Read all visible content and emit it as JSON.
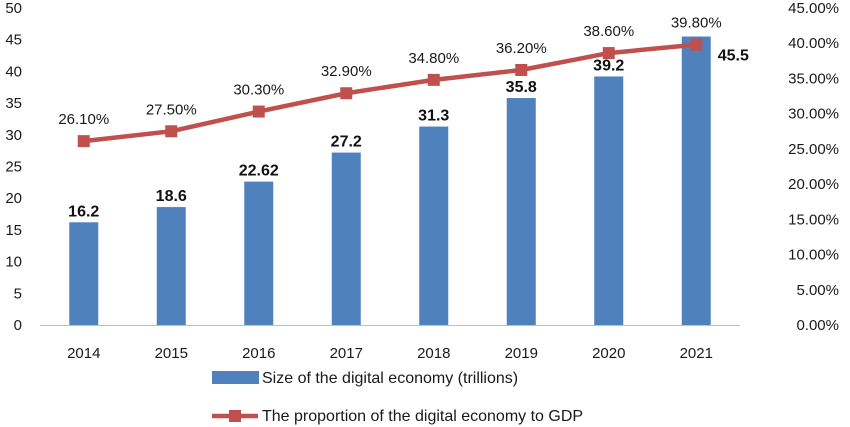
{
  "chart_data": {
    "type": "bar",
    "title": "",
    "xlabel": "",
    "ylabel": "",
    "categories": [
      "2014",
      "2015",
      "2016",
      "2017",
      "2018",
      "2019",
      "2020",
      "2021"
    ],
    "series": [
      {
        "name": "Size of the digital economy (trillions)",
        "type": "bar",
        "axis": "left",
        "color": "#4f81bd",
        "values": [
          16.2,
          18.6,
          22.62,
          27.2,
          31.3,
          35.8,
          39.2,
          45.5
        ],
        "labels": [
          "16.2",
          "18.6",
          "22.62",
          "27.2",
          "31.3",
          "35.8",
          "39.2",
          "45.5"
        ]
      },
      {
        "name": "The proportion of the digital economy to GDP",
        "type": "line",
        "axis": "right",
        "color": "#c0504d",
        "values": [
          26.1,
          27.5,
          30.3,
          32.9,
          34.8,
          36.2,
          38.6,
          39.8
        ],
        "labels": [
          "26.10%",
          "27.50%",
          "30.30%",
          "32.90%",
          "34.80%",
          "36.20%",
          "38.60%",
          "39.80%"
        ]
      }
    ],
    "ylim": [
      0,
      50
    ],
    "yticks": [
      "0",
      "5",
      "10",
      "15",
      "20",
      "25",
      "30",
      "35",
      "40",
      "45",
      "50"
    ],
    "y2lim": [
      0,
      45
    ],
    "y2ticks": [
      "0.00%",
      "5.00%",
      "10.00%",
      "15.00%",
      "20.00%",
      "25.00%",
      "30.00%",
      "35.00%",
      "40.00%",
      "45.00%"
    ],
    "grid": false,
    "legend": "bottom"
  }
}
